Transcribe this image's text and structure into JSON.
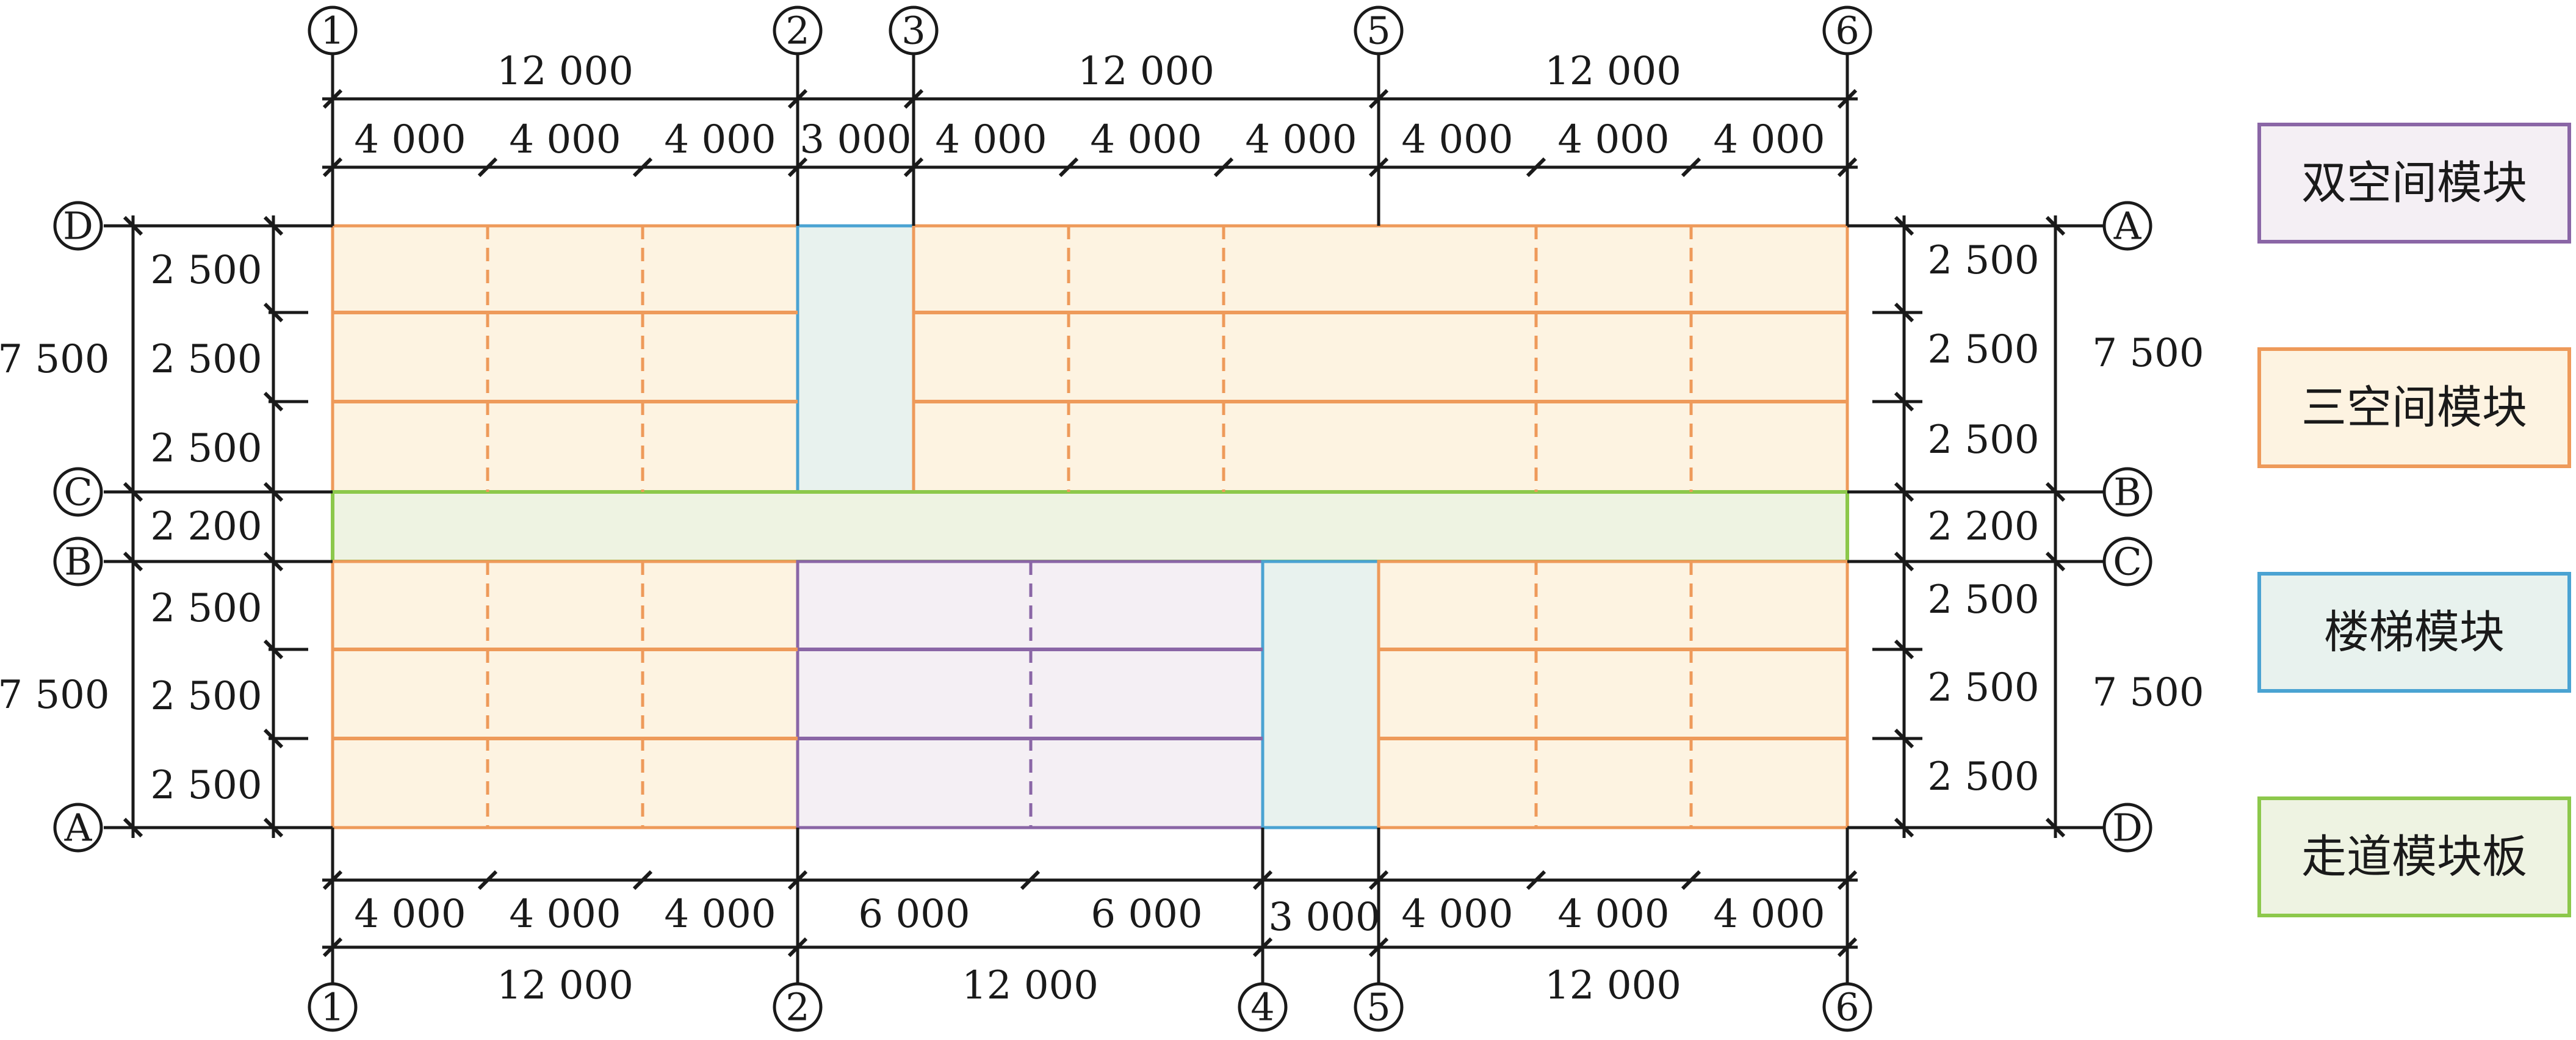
{
  "colors": {
    "triple": {
      "stroke": "#ee9a5a",
      "fill": "#fdf3e1"
    },
    "double": {
      "stroke": "#8a66a6",
      "fill": "#f4eff4"
    },
    "stair": {
      "stroke": "#4aa3d2",
      "fill": "#e8f2ee"
    },
    "corridor": {
      "stroke": "#8cc84b",
      "fill": "#eef3e2"
    },
    "line": "#1a1a1a"
  },
  "legend": [
    {
      "key": "double",
      "label": "双空间模块",
      "icon": "double-space-module"
    },
    {
      "key": "triple",
      "label": "三空间模块",
      "icon": "triple-space-module"
    },
    {
      "key": "stair",
      "label": "楼梯模块",
      "icon": "stair-module"
    },
    {
      "key": "corridor",
      "label": "走道模块板",
      "icon": "corridor-module-slab"
    }
  ],
  "grid": {
    "top_axes": [
      "1",
      "2",
      "3",
      "5",
      "6"
    ],
    "bottom_axes": [
      "1",
      "2",
      "4",
      "5",
      "6"
    ],
    "left_axes": [
      "D",
      "C",
      "B",
      "A"
    ],
    "right_axes": [
      "A",
      "B",
      "C",
      "D"
    ]
  },
  "dimensions": {
    "top_totals": [
      "12 000",
      "12 000",
      "12 000"
    ],
    "top_spans": [
      "4 000",
      "4 000",
      "4 000",
      "3 000",
      "4 000",
      "4 000",
      "4 000",
      "4 000",
      "4 000",
      "4 000"
    ],
    "bottom_spans": [
      "4 000",
      "4 000",
      "4 000",
      "6 000",
      "6 000",
      "3 000",
      "4 000",
      "4 000",
      "4 000"
    ],
    "bottom_totals": [
      "12 000",
      "12 000",
      "12 000"
    ],
    "left_sub": [
      "2 500",
      "2 500",
      "2 500",
      "2 200",
      "2 500",
      "2 500",
      "2 500"
    ],
    "left_totals": [
      "7 500",
      "7 500"
    ],
    "right_sub": [
      "2 500",
      "2 500",
      "2 500",
      "2 200",
      "2 500",
      "2 500",
      "2 500"
    ],
    "right_totals": [
      "7 500",
      "7 500"
    ]
  }
}
